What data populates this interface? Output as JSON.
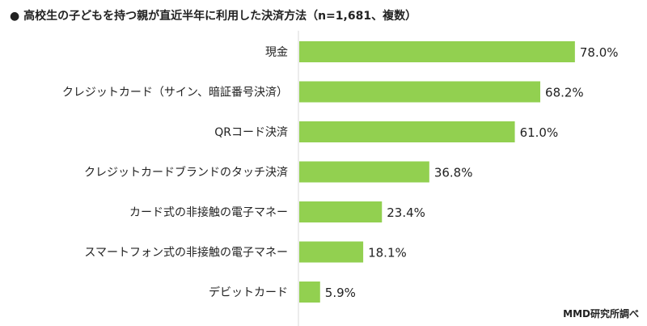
{
  "chart_data": {
    "type": "bar",
    "orientation": "horizontal",
    "title": "● 高校生の子どもを持つ親が直近半年に利用した決済方法（n=1,681、複数）",
    "source": "MMD研究所調べ",
    "categories": [
      "現金",
      "クレジットカード（サイン、暗証番号決済）",
      "QRコード決済",
      "クレジットカードブランドのタッチ決済",
      "カード式の非接触の電子マネー",
      "スマートフォン式の非接触の電子マネー",
      "デビットカード"
    ],
    "values": [
      78.0,
      68.2,
      61.0,
      36.8,
      23.4,
      18.1,
      5.9
    ],
    "value_labels": [
      "78.0%",
      "68.2%",
      "61.0%",
      "36.8%",
      "23.4%",
      "18.1%",
      "5.9%"
    ],
    "xlim": [
      0,
      100
    ],
    "grid": false,
    "legend": "none",
    "colors": {
      "bar": "#92d050",
      "axis": "#d9d9d9",
      "text": "#222222"
    }
  }
}
